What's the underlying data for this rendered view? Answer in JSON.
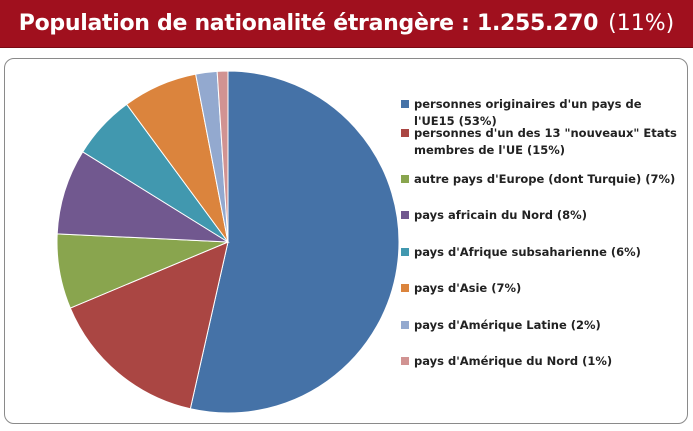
{
  "header": {
    "title": "Population de nationalité étrangère : 1.255.270",
    "share": "(11%)",
    "background": "#a0101e"
  },
  "chart_data": {
    "type": "pie",
    "title": "Population de nationalité étrangère : 1.255.270 (11%)",
    "start_angle_deg": 0,
    "direction": "clockwise",
    "legend_position": "right",
    "slices": [
      {
        "label": "personnes originaires d'un pays de l'UE15 (53%)",
        "value": 53,
        "color": "#4572a7"
      },
      {
        "label": "personnes d'un des 13 \"nouveaux\" Etats membres de l'UE (15%)",
        "value": 15,
        "color": "#aa4643"
      },
      {
        "label": "autre pays d'Europe (dont Turquie) (7%)",
        "value": 7,
        "color": "#89a54e"
      },
      {
        "label": "pays africain du Nord (8%)",
        "value": 8,
        "color": "#71588f"
      },
      {
        "label": "pays d'Afrique subsaharienne (6%)",
        "value": 6,
        "color": "#4198af"
      },
      {
        "label": "pays d'Asie (7%)",
        "value": 7,
        "color": "#db843d"
      },
      {
        "label": "pays d'Amérique Latine (2%)",
        "value": 2,
        "color": "#93a9cf"
      },
      {
        "label": "pays d'Amérique du Nord (1%)",
        "value": 1,
        "color": "#d19392"
      }
    ]
  }
}
